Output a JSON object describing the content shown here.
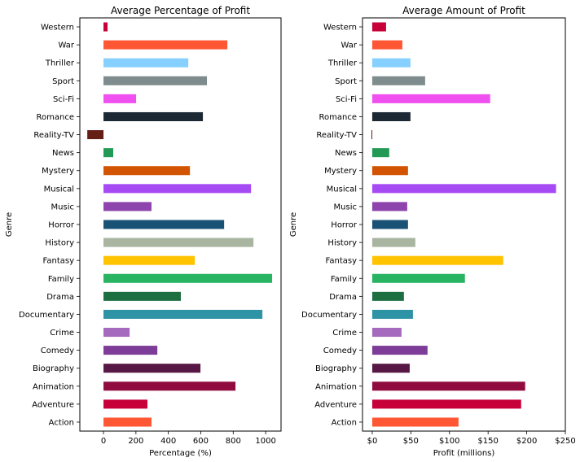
{
  "chart_data": [
    {
      "type": "bar",
      "orientation": "horizontal",
      "title": "Average Percentage of Profit",
      "xlabel": "Percentage (%)",
      "ylabel": "Genre",
      "xlim": [
        -146,
        1095
      ],
      "xticks": [
        0,
        200,
        400,
        600,
        800,
        1000
      ],
      "xtick_labels": [
        "0",
        "200",
        "400",
        "600",
        "800",
        "1000"
      ],
      "grid": false,
      "categories": [
        "Action",
        "Adventure",
        "Animation",
        "Biography",
        "Comedy",
        "Crime",
        "Documentary",
        "Drama",
        "Family",
        "Fantasy",
        "History",
        "Horror",
        "Music",
        "Musical",
        "Mystery",
        "News",
        "Reality-TV",
        "Romance",
        "Sci-Fi",
        "Sport",
        "Thriller",
        "War",
        "Western"
      ],
      "values": [
        296,
        271,
        814,
        598,
        332,
        161,
        980,
        477,
        1040,
        563,
        925,
        744,
        296,
        910,
        533,
        60,
        -100,
        613,
        201,
        638,
        523,
        764,
        25
      ]
    },
    {
      "type": "bar",
      "orientation": "horizontal",
      "title": "Average Amount of Profit",
      "xlabel": "Profit (millions)",
      "ylabel": "Genre",
      "xlim": [
        -12.6,
        250
      ],
      "xticks": [
        0,
        50,
        100,
        150,
        200,
        250
      ],
      "xtick_labels": [
        "$0",
        "$50",
        "$100",
        "$150",
        "$200",
        "$250"
      ],
      "grid": false,
      "categories": [
        "Action",
        "Adventure",
        "Animation",
        "Biography",
        "Comedy",
        "Crime",
        "Documentary",
        "Drama",
        "Family",
        "Fantasy",
        "History",
        "Horror",
        "Music",
        "Musical",
        "Mystery",
        "News",
        "Reality-TV",
        "Romance",
        "Sci-Fi",
        "Sport",
        "Thriller",
        "War",
        "Western"
      ],
      "values": [
        111.7,
        192.8,
        198,
        48.5,
        71.6,
        37.9,
        52.7,
        41,
        120,
        169.6,
        55.8,
        46.3,
        45.3,
        238,
        46.3,
        22,
        -1,
        49.5,
        152.7,
        68.5,
        49.5,
        39,
        17.9
      ]
    }
  ],
  "colors": [
    "#ff5733",
    "#c70039",
    "#900c3f",
    "#581845",
    "#7d3c98",
    "#a569bd",
    "#2e93a4",
    "#1d6f42",
    "#28b463",
    "#ffc300",
    "#a9b5a0",
    "#1a5276",
    "#8e44ad",
    "#a64bf4",
    "#d35400",
    "#229954",
    "#641e16",
    "#1c2833",
    "#f050f0",
    "#7f8c8d",
    "#85d0ff",
    "#ff5733",
    "#c70039"
  ]
}
